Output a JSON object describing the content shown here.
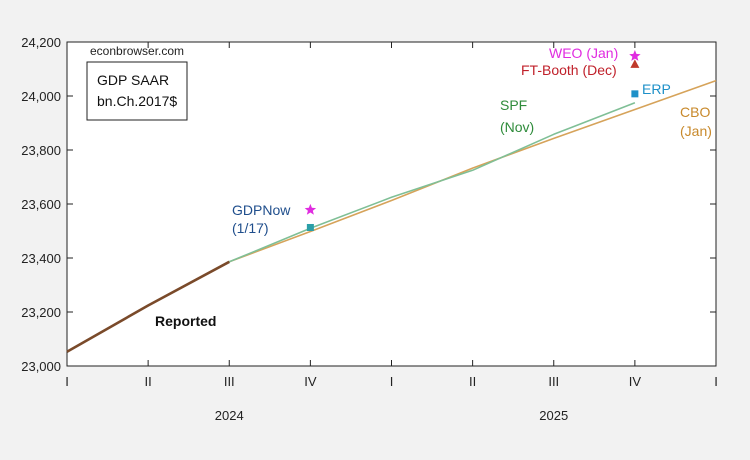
{
  "chart_data": {
    "type": "line",
    "source_label": "econbrowser.com",
    "legend_box": {
      "line1": "GDP SAAR",
      "line2": "bn.Ch.2017$"
    },
    "y_ticks": [
      23000,
      23200,
      23400,
      23600,
      23800,
      24000,
      24200
    ],
    "y_tick_labels": [
      "23,000",
      "23,200",
      "23,400",
      "23,600",
      "23,800",
      "24,000",
      "24,200"
    ],
    "ylim": [
      23000,
      24200
    ],
    "x_ticks": [
      "I",
      "II",
      "III",
      "IV",
      "I",
      "II",
      "III",
      "IV",
      "I"
    ],
    "year_labels": [
      {
        "label": "2024",
        "center_index": 2
      },
      {
        "label": "2025",
        "center_index": 6
      }
    ],
    "series": [
      {
        "name": "Reported",
        "color": "#7a4a2a",
        "x": [
          0,
          1,
          2
        ],
        "values": [
          23053,
          23224,
          23386
        ]
      },
      {
        "name": "SPF (Nov)",
        "color": "#7fbf96",
        "x": [
          2,
          3,
          4,
          5,
          6,
          7
        ],
        "values": [
          23386,
          23510,
          23625,
          23725,
          23858,
          23975
        ]
      },
      {
        "name": "CBO (Jan)",
        "color": "#d6a35a",
        "x": [
          2,
          3,
          4,
          5,
          6,
          7,
          8
        ],
        "values": [
          23386,
          23498,
          23613,
          23733,
          23843,
          23950,
          24057
        ]
      }
    ],
    "points": [
      {
        "name": "GDPNow (1/17)",
        "x": 3,
        "value": 23513,
        "marker": "square",
        "color": "#2a9fa8"
      },
      {
        "name": "GDPNow star",
        "x": 3,
        "value": 23578,
        "marker": "star",
        "color": "#e02ce0"
      },
      {
        "name": "ERP",
        "x": 7,
        "value": 24008,
        "marker": "square",
        "color": "#1e90c8"
      },
      {
        "name": "WEO (Jan)",
        "x": 7,
        "value": 24148,
        "marker": "star",
        "color": "#e02ce0"
      },
      {
        "name": "FT-Booth (Dec)",
        "x": 7,
        "value": 24117,
        "marker": "triangle",
        "color": "#c0392b"
      }
    ],
    "annotations": [
      {
        "text": "Reported",
        "color": "#111111",
        "bold": true
      },
      {
        "text": "GDPNow",
        "color": "#1f4e8c"
      },
      {
        "text": "(1/17)",
        "color": "#1f4e8c"
      },
      {
        "text": "SPF",
        "color": "#2e8b3a"
      },
      {
        "text": "(Nov)",
        "color": "#2e8b3a"
      },
      {
        "text": "CBO",
        "color": "#c8892b"
      },
      {
        "text": "(Jan)",
        "color": "#c8892b"
      },
      {
        "text": "ERP",
        "color": "#1e90c8"
      },
      {
        "text": "WEO (Jan)",
        "color": "#e02ce0"
      },
      {
        "text": "FT-Booth (Dec)",
        "color": "#c0202a"
      }
    ],
    "grid": false
  }
}
